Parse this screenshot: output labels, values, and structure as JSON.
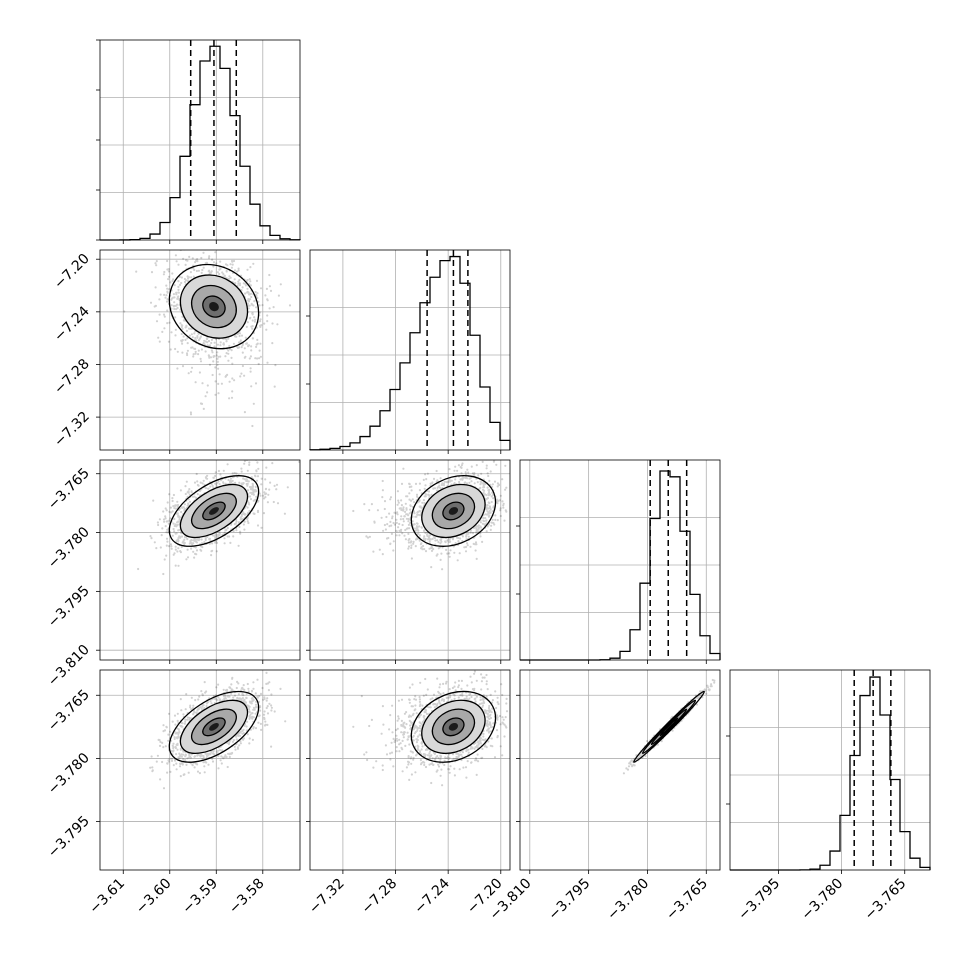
{
  "chart_data": {
    "type": "corner",
    "parameters": [
      {
        "range": [
          -3.615,
          -3.572
        ],
        "ticks": [
          -3.61,
          -3.6,
          -3.59,
          -3.58
        ],
        "tick_labels": [
          "−3.61",
          "−3.60",
          "−3.59",
          "−3.58"
        ],
        "mean": -3.5905,
        "sd": 0.0048,
        "quantiles": [
          -3.5955,
          -3.5905,
          -3.5857
        ]
      },
      {
        "range": [
          -7.345,
          -7.193
        ],
        "ticks": [
          -7.32,
          -7.28,
          -7.24,
          -7.2
        ],
        "tick_labels": [
          "−7.32",
          "−7.28",
          "−7.24",
          "−7.20"
        ],
        "mean": -7.236,
        "sd": 0.016,
        "quantiles": [
          -7.256,
          -7.236,
          -7.225
        ]
      },
      {
        "range": [
          -3.8125,
          -3.7615
        ],
        "ticks": [
          -3.81,
          -3.795,
          -3.78,
          -3.765
        ],
        "tick_labels": [
          "−3.810",
          "−3.795",
          "−3.780",
          "−3.765"
        ],
        "mean": -3.7745,
        "sd": 0.0045,
        "quantiles": [
          -3.7793,
          -3.7747,
          -3.77
        ]
      },
      {
        "range": [
          -3.8065,
          -3.759
        ],
        "ticks": [
          -3.795,
          -3.78,
          -3.765
        ],
        "tick_labels": [
          "−3.795",
          "−3.780",
          "−3.765"
        ],
        "mean": -3.7725,
        "sd": 0.0042,
        "quantiles": [
          -3.777,
          -3.7725,
          -3.7683
        ]
      }
    ],
    "y_axis_tick_labels": {
      "row1": [
        "−7.20",
        "−7.24",
        "−7.28",
        "−7.32"
      ],
      "row2": [
        "−3.765",
        "−3.780",
        "−3.795",
        "−3.810"
      ],
      "row3": [
        "−3.765",
        "−3.780",
        "−3.795"
      ]
    },
    "histogram_bins": 20,
    "contour_levels_sigma": [
      0.5,
      1.0,
      1.5,
      2.0
    ],
    "correlations": {
      "0-1": -0.15,
      "0-2": 0.55,
      "0-3": 0.55,
      "1-2": 0.25,
      "1-3": 0.25,
      "2-3": 0.99
    },
    "grid": true
  }
}
